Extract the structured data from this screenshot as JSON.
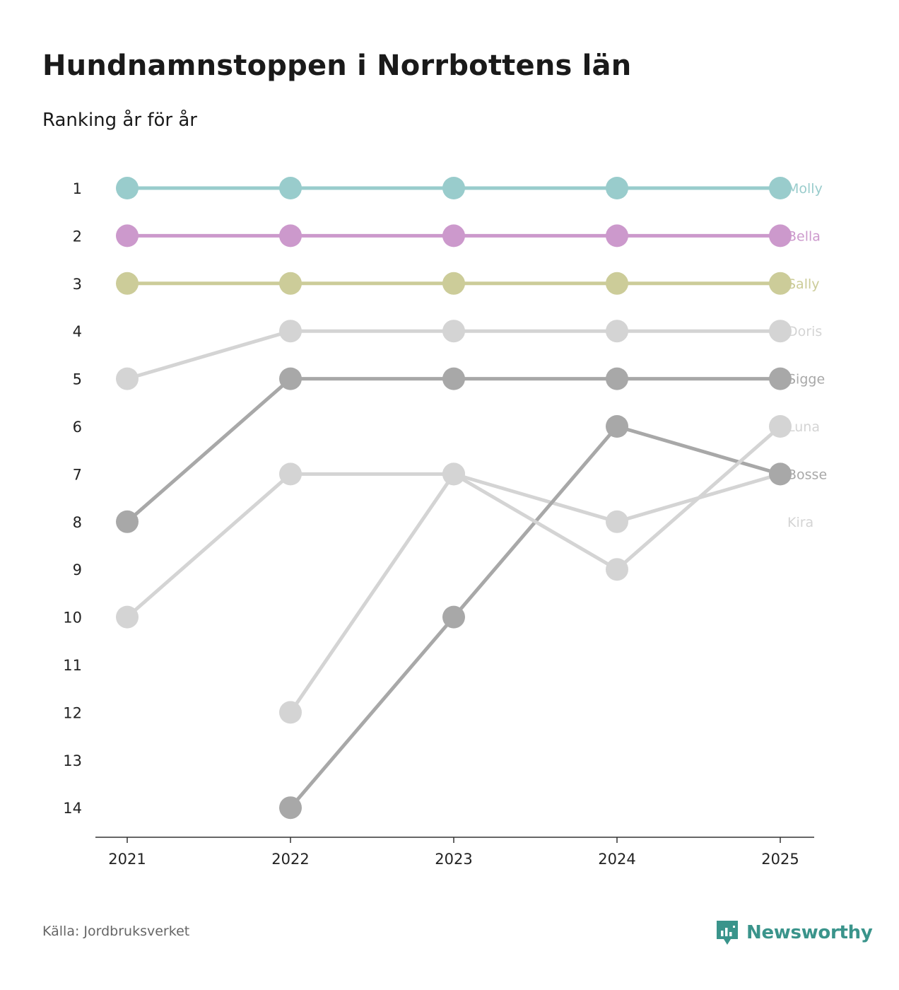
{
  "title": "Hundnamnstoppen i Norrbottens län",
  "subtitle": "Ranking år för år",
  "source": "Källa: Jordbruksverket",
  "brand": {
    "name": "Newsworthy",
    "icon": "newsworthy-logo-icon",
    "color": "#3a948b"
  },
  "chart_data": {
    "type": "line",
    "title": "Hundnamnstoppen i Norrbottens län",
    "subtitle": "Ranking år för år",
    "xlabel": "",
    "ylabel": "",
    "x": [
      "2021",
      "2022",
      "2023",
      "2024",
      "2025"
    ],
    "y_ticks": [
      "1",
      "2",
      "3",
      "4",
      "5",
      "6",
      "7",
      "8",
      "9",
      "10",
      "11",
      "12",
      "13",
      "14"
    ],
    "ylim": [
      1,
      14
    ],
    "y_inverted": true,
    "grid": false,
    "series": [
      {
        "name": "Molly",
        "color": "#99cccc",
        "values": [
          1,
          1,
          1,
          1,
          1
        ]
      },
      {
        "name": "Bella",
        "color": "#cc99cc",
        "values": [
          2,
          2,
          2,
          2,
          2
        ]
      },
      {
        "name": "Sally",
        "color": "#cccc99",
        "values": [
          3,
          3,
          3,
          3,
          3
        ]
      },
      {
        "name": "Doris",
        "color": "#d4d4d4",
        "values": [
          5,
          4,
          4,
          4,
          4
        ]
      },
      {
        "name": "Sigge",
        "color": "#a8a8a8",
        "values": [
          8,
          5,
          5,
          5,
          5
        ]
      },
      {
        "name": "Luna",
        "color": "#d4d4d4",
        "values": [
          null,
          12,
          7,
          9,
          6
        ]
      },
      {
        "name": "Bosse",
        "color": "#a8a8a8",
        "values": [
          null,
          14,
          10,
          6,
          7
        ]
      },
      {
        "name": "Kira",
        "color": "#d4d4d4",
        "values": [
          10,
          7,
          7,
          8,
          7
        ]
      }
    ],
    "end_label_ranks": {
      "Molly": 1,
      "Bella": 2,
      "Sally": 3,
      "Doris": 4,
      "Sigge": 5,
      "Luna": 6,
      "Bosse": 7,
      "Kira": 8
    }
  }
}
